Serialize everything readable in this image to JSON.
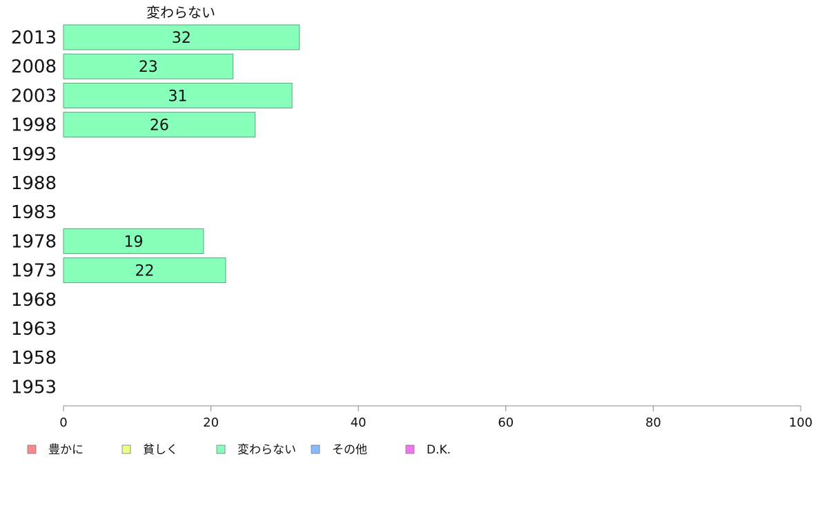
{
  "chart_data": {
    "type": "bar",
    "orientation": "horizontal",
    "title": "変わらない",
    "categories": [
      "2013",
      "2008",
      "2003",
      "1998",
      "1993",
      "1988",
      "1983",
      "1978",
      "1973",
      "1968",
      "1963",
      "1958",
      "1953"
    ],
    "series": [
      {
        "name": "変わらない",
        "color": "#88ffbb",
        "values": [
          32,
          23,
          31,
          26,
          null,
          null,
          null,
          19,
          22,
          null,
          null,
          null,
          null
        ]
      }
    ],
    "xlim": [
      0,
      100
    ],
    "xticks": [
      0,
      20,
      40,
      60,
      80,
      100
    ],
    "grid": false,
    "legend": {
      "placement": "bottom-left",
      "items": [
        {
          "label": "豊かに",
          "color": "#ff8888"
        },
        {
          "label": "貧しく",
          "color": "#eeff88"
        },
        {
          "label": "変わらない",
          "color": "#88ffbb"
        },
        {
          "label": "その他",
          "color": "#88bbff"
        },
        {
          "label": "D.K.",
          "color": "#ee77ee"
        }
      ]
    }
  }
}
